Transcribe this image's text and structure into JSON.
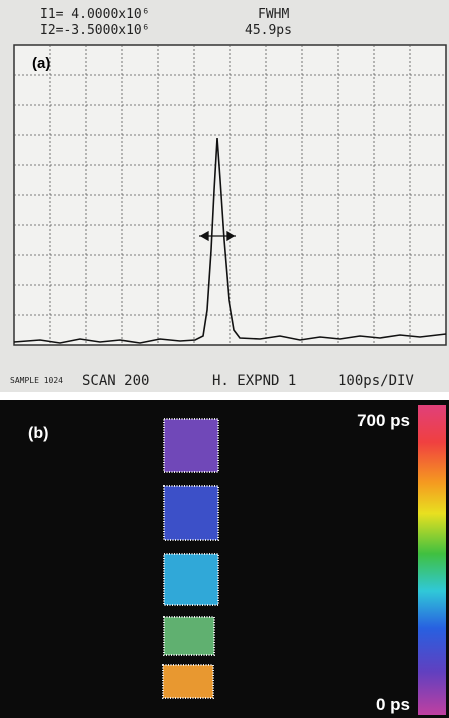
{
  "panel_a": {
    "label": "(a)",
    "header": {
      "line1": "I1= 4.0000x10⁶",
      "line2": "I2=-3.5000x10⁶",
      "fwhm_label": "FWHM",
      "fwhm_value": "45.9ps"
    },
    "footer": {
      "sample": "SAMPLE 1024",
      "scan": "SCAN 200",
      "expand": "H. EXPND 1",
      "scale": "100ps/DIV"
    }
  },
  "panel_b": {
    "label": "(b)",
    "colorbar_top": "700 ps",
    "colorbar_bottom": "0 ps"
  }
}
